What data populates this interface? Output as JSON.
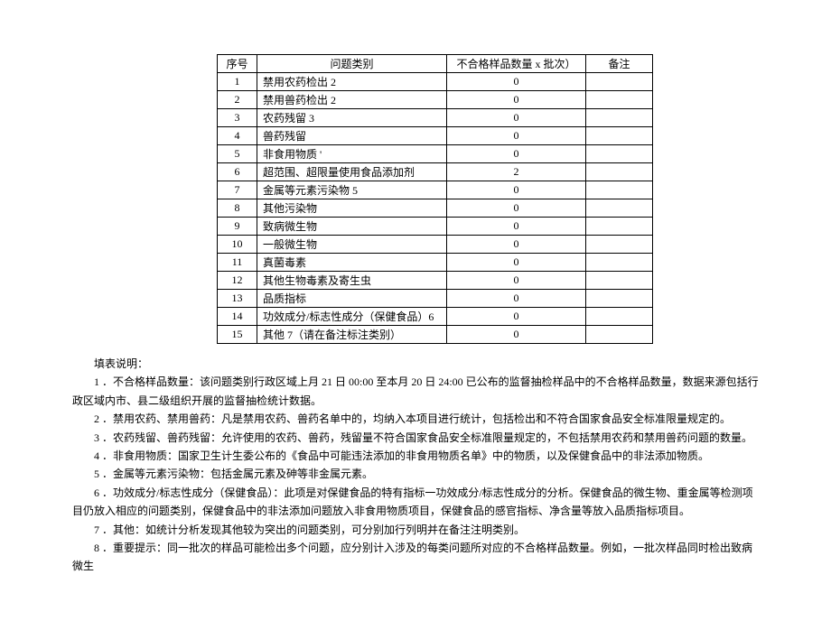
{
  "table": {
    "headers": {
      "seq": "序号",
      "category": "问题类别",
      "count": "不合格样品数量 x 批次）",
      "note": "备注"
    },
    "rows": [
      {
        "seq": "1",
        "category": "禁用农药检出 2",
        "count": "0",
        "note": ""
      },
      {
        "seq": "2",
        "category": "禁用兽药检出 2",
        "count": "0",
        "note": ""
      },
      {
        "seq": "3",
        "category": "农药残留 3",
        "count": "0",
        "note": ""
      },
      {
        "seq": "4",
        "category": "兽药残留",
        "count": "0",
        "note": ""
      },
      {
        "seq": "5",
        "category": "非食用物质 '",
        "count": "0",
        "note": ""
      },
      {
        "seq": "6",
        "category": "超范围、超限量使用食品添加剂",
        "count": "2",
        "note": ""
      },
      {
        "seq": "7",
        "category": "金属等元素污染物 5",
        "count": "0",
        "note": ""
      },
      {
        "seq": "8",
        "category": "其他污染物",
        "count": "0",
        "note": ""
      },
      {
        "seq": "9",
        "category": "致病微生物",
        "count": "0",
        "note": ""
      },
      {
        "seq": "10",
        "category": "一般微生物",
        "count": "0",
        "note": ""
      },
      {
        "seq": "11",
        "category": "真菌毒素",
        "count": "0",
        "note": ""
      },
      {
        "seq": "12",
        "category": "其他生物毒素及寄生虫",
        "count": "0",
        "note": ""
      },
      {
        "seq": "13",
        "category": "品质指标",
        "count": "0",
        "note": ""
      },
      {
        "seq": "14",
        "category": "功效成分/标志性成分（保健食品）6",
        "count": "0",
        "note": ""
      },
      {
        "seq": "15",
        "category": "其他 7（请在备注标注类别）",
        "count": "0",
        "note": ""
      }
    ]
  },
  "notes": {
    "title": "填表说明：",
    "items": [
      "1 ．不合格样品数量：该问题类别行政区域上月 21 日 00:00 至本月 20 日 24:00 已公布的监督抽检样品中的不合格样品数量，数据来源包括行政区域内市、县二级组织开展的监督抽检统计数据。",
      "2 ．禁用农药、禁用兽药：凡是禁用农药、兽药名单中的，均纳入本项目进行统计，包括检出和不符合国家食品安全标准限量规定的。",
      "3 ．农药残留、兽药残留：允许使用的农药、兽药，残留量不符合国家食品安全标准限量规定的，不包括禁用农药和禁用兽药问题的数量。",
      "4 ．非食用物质：国家卫生计生委公布的《食品中可能违法添加的非食用物质名单》中的物质，以及保健食品中的非法添加物质。",
      "5 ．金属等元素污染物：包括金属元素及砷等非金属元素。",
      "6 ．功效成分/标志性成分（保健食品）：此项是对保健食品的特有指标一功效成分/标志性成分的分析。保健食品的微生物、重金属等检测项目仍放入相应的问题类别，保健食品中的非法添加问题放入非食用物质项目，保健食品的感官指标、净含量等放入品质指标项目。",
      "7 ．其他：如统计分析发现其他较为突出的问题类别，可分别加行列明并在备注注明类别。",
      "8 ．重要提示：同一批次的样品可能检出多个问题，应分别计入涉及的每类问题所对应的不合格样品数量。例如，一批次样品同时检出致病微生"
    ]
  }
}
